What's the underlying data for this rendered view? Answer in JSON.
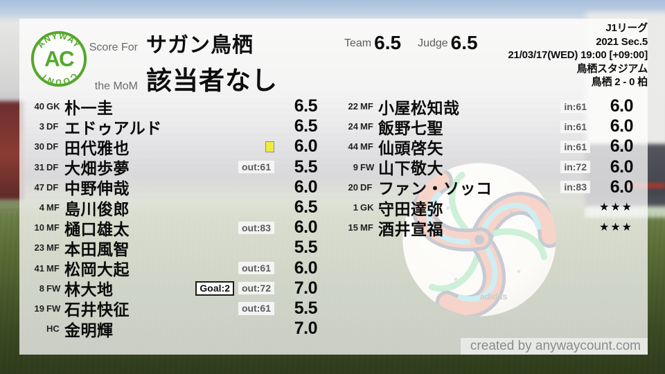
{
  "brand": {
    "logo_arc_top": "ANYWAY",
    "logo_center": "AC",
    "logo_arc_bottom": "COUNT",
    "accent_green": "#55a82b"
  },
  "header": {
    "score_for_label": "Score For",
    "team_name": "サガン鳥栖",
    "mom_label": "the MoM",
    "mom_value": "該当者なし",
    "team_label": "Team",
    "team_rating": "6.5",
    "judge_label": "Judge",
    "judge_rating": "6.5"
  },
  "match_info": {
    "league": "J1リーグ",
    "season": "2021 Sec.5",
    "datetime": "21/03/17(WED) 19:00 [+09:00]",
    "stadium": "鳥栖スタジアム",
    "score": "鳥栖 2 - 0 柏"
  },
  "players": {
    "left": [
      {
        "num": "40",
        "pos": "GK",
        "name": "朴一圭",
        "badges": [],
        "rating": "6.5"
      },
      {
        "num": "3",
        "pos": "DF",
        "name": "エドゥアルド",
        "badges": [],
        "rating": "6.5"
      },
      {
        "num": "30",
        "pos": "DF",
        "name": "田代雅也",
        "badges": [
          {
            "type": "yellow-card",
            "label": ""
          }
        ],
        "rating": "6.0"
      },
      {
        "num": "31",
        "pos": "DF",
        "name": "大畑歩夢",
        "badges": [
          {
            "type": "sub",
            "label": "out:61"
          }
        ],
        "rating": "5.5"
      },
      {
        "num": "47",
        "pos": "DF",
        "name": "中野伸哉",
        "badges": [],
        "rating": "6.0"
      },
      {
        "num": "4",
        "pos": "MF",
        "name": "島川俊郎",
        "badges": [],
        "rating": "6.5"
      },
      {
        "num": "10",
        "pos": "MF",
        "name": "樋口雄太",
        "badges": [
          {
            "type": "sub",
            "label": "out:83"
          }
        ],
        "rating": "6.0"
      },
      {
        "num": "23",
        "pos": "MF",
        "name": "本田風智",
        "badges": [],
        "rating": "5.5"
      },
      {
        "num": "41",
        "pos": "MF",
        "name": "松岡大起",
        "badges": [
          {
            "type": "sub",
            "label": "out:61"
          }
        ],
        "rating": "6.0"
      },
      {
        "num": "8",
        "pos": "FW",
        "name": "林大地",
        "badges": [
          {
            "type": "goal",
            "label": "Goal:2"
          },
          {
            "type": "sub",
            "label": "out:72"
          }
        ],
        "rating": "7.0"
      },
      {
        "num": "19",
        "pos": "FW",
        "name": "石井快征",
        "badges": [
          {
            "type": "sub",
            "label": "out:61"
          }
        ],
        "rating": "5.5"
      },
      {
        "num": "",
        "pos": "HC",
        "name": "金明輝",
        "badges": [],
        "rating": "7.0"
      }
    ],
    "right": [
      {
        "num": "22",
        "pos": "MF",
        "name": "小屋松知哉",
        "badges": [
          {
            "type": "sub",
            "label": "in:61"
          }
        ],
        "rating": "6.0"
      },
      {
        "num": "24",
        "pos": "MF",
        "name": "飯野七聖",
        "badges": [
          {
            "type": "sub",
            "label": "in:61"
          }
        ],
        "rating": "6.0"
      },
      {
        "num": "44",
        "pos": "MF",
        "name": "仙頭啓矢",
        "badges": [
          {
            "type": "sub",
            "label": "in:61"
          }
        ],
        "rating": "6.0"
      },
      {
        "num": "9",
        "pos": "FW",
        "name": "山下敬大",
        "badges": [
          {
            "type": "sub",
            "label": "in:72"
          }
        ],
        "rating": "6.0"
      },
      {
        "num": "20",
        "pos": "DF",
        "name": "ファン・ソッコ",
        "badges": [
          {
            "type": "sub",
            "label": "in:83"
          }
        ],
        "rating": "6.0"
      },
      {
        "num": "1",
        "pos": "GK",
        "name": "守田達弥",
        "badges": [],
        "rating": "★★★"
      },
      {
        "num": "15",
        "pos": "MF",
        "name": "酒井宣福",
        "badges": [],
        "rating": "★★★"
      }
    ]
  },
  "footer": {
    "credit": "created by anywaycount.com"
  },
  "colors": {
    "accent_green": "#55a82b",
    "yellow_card": "#f2ea3d"
  }
}
